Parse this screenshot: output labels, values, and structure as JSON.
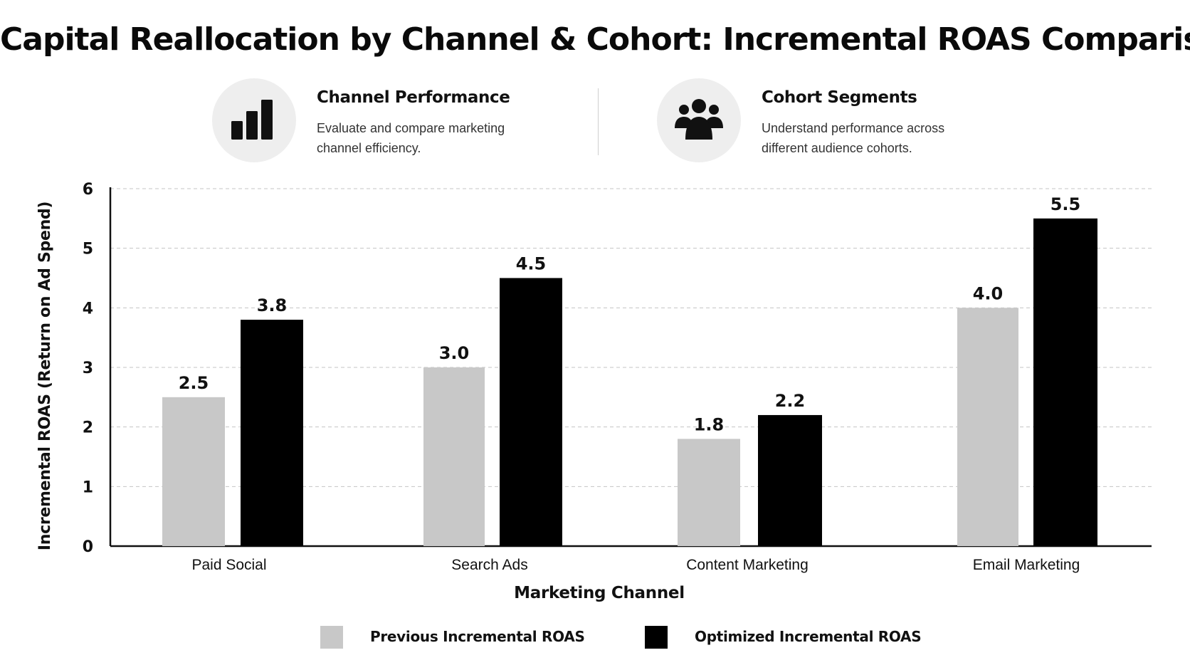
{
  "header": {
    "title": "Capital Reallocation by Channel & Cohort: Incremental ROAS Comparison"
  },
  "cards": [
    {
      "icon": "bar-chart-icon",
      "heading": "Channel Performance",
      "text": "Evaluate and compare marketing channel efficiency."
    },
    {
      "icon": "group-users-icon",
      "heading": "Cohort Segments",
      "text": "Understand performance across different audience cohorts."
    }
  ],
  "colors": {
    "previous": "#c8c8c8",
    "optimized": "#000000",
    "grid": "#c4c4c4",
    "axis": "#111111",
    "icon_bg": "#eeeeee"
  },
  "chart_data": {
    "type": "bar",
    "title": "Capital Reallocation by Channel & Cohort: Incremental ROAS Comparison",
    "xlabel": "Marketing Channel",
    "ylabel": "Incremental ROAS (Return on Ad Spend)",
    "categories": [
      "Paid Social",
      "Search Ads",
      "Content Marketing",
      "Email Marketing"
    ],
    "series": [
      {
        "name": "Previous Incremental ROAS",
        "values": [
          2.5,
          3.0,
          1.8,
          4.0
        ],
        "labels": [
          "2.5",
          "3.0",
          "1.8",
          "4.0"
        ],
        "color": "#c8c8c8"
      },
      {
        "name": "Optimized Incremental ROAS",
        "values": [
          3.8,
          4.5,
          2.2,
          5.5
        ],
        "labels": [
          "3.8",
          "4.5",
          "2.2",
          "5.5"
        ],
        "color": "#000000"
      }
    ],
    "ylim": [
      0,
      6
    ],
    "yticks": [
      "0",
      "1",
      "2",
      "3",
      "4",
      "5",
      "6"
    ],
    "grid": true,
    "grid_style": "dashed horizontal",
    "legend": "bottom-center"
  }
}
